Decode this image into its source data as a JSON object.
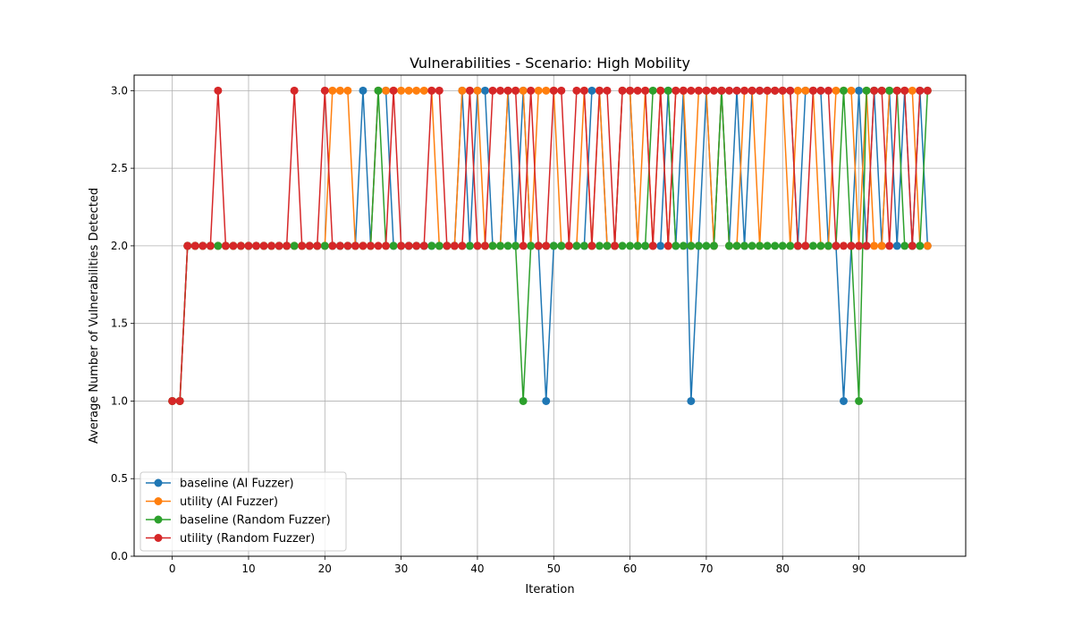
{
  "chart_data": {
    "type": "line",
    "title": "Vulnerabilities - Scenario: High Mobility",
    "xlabel": "Iteration",
    "ylabel": "Average Number of Vulnerabilities Detected",
    "xlim": [
      -5.0,
      104.0
    ],
    "ylim": [
      0.0,
      3.1
    ],
    "xticks": [
      0,
      10,
      20,
      30,
      40,
      50,
      60,
      70,
      80,
      90
    ],
    "yticks": [
      0.0,
      0.5,
      1.0,
      1.5,
      2.0,
      2.5,
      3.0
    ],
    "ytick_labels": [
      "0.0",
      "0.5",
      "1.0",
      "1.5",
      "2.0",
      "2.5",
      "3.0"
    ],
    "grid": true,
    "legend_position": "lower-left",
    "x": [
      0,
      1,
      2,
      3,
      4,
      5,
      6,
      7,
      8,
      9,
      10,
      11,
      12,
      13,
      14,
      15,
      16,
      17,
      18,
      19,
      20,
      21,
      22,
      23,
      24,
      25,
      26,
      27,
      28,
      29,
      30,
      31,
      32,
      33,
      34,
      35,
      36,
      37,
      38,
      39,
      40,
      41,
      42,
      43,
      44,
      45,
      46,
      47,
      48,
      49,
      50,
      51,
      52,
      53,
      54,
      55,
      56,
      57,
      58,
      59,
      60,
      61,
      62,
      63,
      64,
      65,
      66,
      67,
      68,
      69,
      70,
      71,
      72,
      73,
      74,
      75,
      76,
      77,
      78,
      79,
      80,
      81,
      82,
      83,
      84,
      85,
      86,
      87,
      88,
      89,
      90,
      91,
      92,
      93,
      94,
      95,
      96,
      97,
      98,
      99
    ],
    "series": [
      {
        "name": "baseline (AI Fuzzer)",
        "color": "#1f77b4",
        "values": [
          1,
          1,
          2,
          2,
          2,
          2,
          2,
          2,
          2,
          2,
          2,
          2,
          2,
          2,
          2,
          2,
          2,
          2,
          2,
          2,
          2,
          2,
          2,
          2,
          2,
          3,
          2,
          3,
          3,
          2,
          2,
          2,
          2,
          2,
          2,
          2,
          2,
          2,
          3,
          2,
          3,
          3,
          2,
          2,
          3,
          2,
          3,
          2,
          2,
          1,
          2,
          2,
          2,
          2,
          2,
          3,
          3,
          2,
          2,
          3,
          3,
          2,
          2,
          2,
          2,
          3,
          2,
          3,
          1,
          2,
          3,
          2,
          3,
          2,
          3,
          2,
          3,
          3,
          3,
          3,
          3,
          3,
          2,
          3,
          3,
          3,
          2,
          2,
          1,
          2,
          3,
          2,
          3,
          2,
          3,
          2,
          3,
          2,
          3,
          2
        ]
      },
      {
        "name": "utility (AI Fuzzer)",
        "color": "#ff7f0e",
        "values": [
          1,
          1,
          2,
          2,
          2,
          2,
          2,
          2,
          2,
          2,
          2,
          2,
          2,
          2,
          2,
          2,
          2,
          2,
          2,
          2,
          2,
          3,
          3,
          3,
          2,
          2,
          2,
          3,
          3,
          3,
          3,
          3,
          3,
          3,
          3,
          2,
          2,
          2,
          3,
          3,
          3,
          2,
          2,
          2,
          3,
          3,
          3,
          2,
          3,
          3,
          3,
          2,
          2,
          2,
          3,
          2,
          3,
          2,
          2,
          3,
          3,
          2,
          3,
          2,
          3,
          2,
          3,
          3,
          2,
          3,
          3,
          2,
          3,
          2,
          2,
          3,
          3,
          2,
          3,
          3,
          3,
          2,
          3,
          3,
          3,
          2,
          2,
          3,
          3,
          3,
          2,
          3,
          2,
          2,
          3,
          3,
          3,
          3,
          2,
          2
        ]
      },
      {
        "name": "baseline (Random Fuzzer)",
        "color": "#2ca02c",
        "values": [
          1,
          1,
          2,
          2,
          2,
          2,
          2,
          2,
          2,
          2,
          2,
          2,
          2,
          2,
          2,
          2,
          2,
          2,
          2,
          2,
          2,
          2,
          2,
          2,
          2,
          2,
          2,
          3,
          2,
          2,
          2,
          2,
          2,
          2,
          2,
          2,
          2,
          2,
          2,
          2,
          2,
          2,
          2,
          2,
          2,
          2,
          1,
          2,
          2,
          2,
          2,
          2,
          2,
          2,
          2,
          2,
          2,
          2,
          2,
          2,
          2,
          2,
          2,
          3,
          3,
          3,
          2,
          2,
          2,
          2,
          2,
          2,
          3,
          2,
          2,
          2,
          2,
          2,
          2,
          2,
          2,
          2,
          2,
          2,
          2,
          2,
          2,
          2,
          3,
          2,
          1,
          3,
          3,
          3,
          3,
          3,
          2,
          2,
          2,
          3
        ]
      },
      {
        "name": "utility (Random Fuzzer)",
        "color": "#d62728",
        "values": [
          1,
          1,
          2,
          2,
          2,
          2,
          3,
          2,
          2,
          2,
          2,
          2,
          2,
          2,
          2,
          2,
          3,
          2,
          2,
          2,
          3,
          2,
          2,
          2,
          2,
          2,
          2,
          2,
          2,
          3,
          2,
          2,
          2,
          2,
          3,
          3,
          2,
          2,
          2,
          3,
          2,
          2,
          3,
          3,
          3,
          3,
          2,
          3,
          2,
          2,
          3,
          3,
          2,
          3,
          3,
          2,
          3,
          3,
          2,
          3,
          3,
          3,
          3,
          2,
          3,
          2,
          3,
          3,
          3,
          3,
          3,
          3,
          3,
          3,
          3,
          3,
          3,
          3,
          3,
          3,
          3,
          3,
          2,
          2,
          3,
          3,
          3,
          2,
          2,
          2,
          2,
          2,
          3,
          3,
          2,
          3,
          3,
          2,
          3,
          3
        ]
      }
    ]
  }
}
